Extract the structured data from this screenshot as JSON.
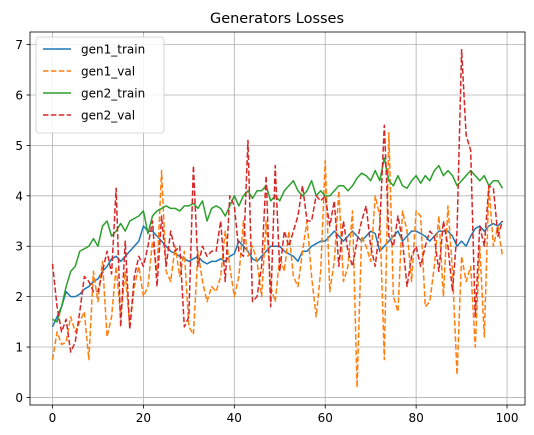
{
  "chart_data": {
    "type": "line",
    "title": "Generators Losses",
    "xlabel": "",
    "ylabel": "",
    "xlim": [
      -4.95,
      103.95
    ],
    "ylim": [
      -0.15,
      7.25
    ],
    "xticks": [
      0,
      20,
      40,
      60,
      80,
      100
    ],
    "yticks": [
      0,
      1,
      2,
      3,
      4,
      5,
      6,
      7
    ],
    "grid": true,
    "legend_position": "top-left",
    "series": [
      {
        "name": "gen1_train",
        "color": "#1f77b4",
        "style": "solid",
        "x": [
          0,
          1,
          2,
          3,
          4,
          5,
          6,
          7,
          8,
          9,
          10,
          11,
          12,
          13,
          14,
          15,
          16,
          17,
          18,
          19,
          20,
          21,
          22,
          23,
          24,
          25,
          26,
          27,
          28,
          29,
          30,
          31,
          32,
          33,
          34,
          35,
          36,
          37,
          38,
          39,
          40,
          41,
          42,
          43,
          44,
          45,
          46,
          47,
          48,
          49,
          50,
          51,
          52,
          53,
          54,
          55,
          56,
          57,
          58,
          59,
          60,
          61,
          62,
          63,
          64,
          65,
          66,
          67,
          68,
          69,
          70,
          71,
          72,
          73,
          74,
          75,
          76,
          77,
          78,
          79,
          80,
          81,
          82,
          83,
          84,
          85,
          86,
          87,
          88,
          89,
          90,
          91,
          92,
          93,
          94,
          95,
          96,
          97,
          98,
          99
        ],
        "values": [
          1.4,
          1.6,
          1.8,
          2.1,
          2.0,
          2.0,
          2.05,
          2.15,
          2.2,
          2.3,
          2.35,
          2.5,
          2.6,
          2.75,
          2.8,
          2.7,
          2.8,
          2.9,
          3.0,
          3.1,
          3.4,
          3.3,
          3.3,
          3.2,
          3.1,
          3.0,
          2.9,
          2.85,
          2.8,
          2.75,
          2.7,
          2.75,
          2.8,
          2.7,
          2.65,
          2.7,
          2.7,
          2.75,
          2.7,
          2.8,
          2.85,
          3.1,
          3.0,
          2.9,
          2.75,
          2.7,
          2.8,
          2.9,
          3.0,
          3.0,
          3.0,
          2.9,
          2.85,
          2.8,
          2.7,
          2.9,
          2.9,
          3.0,
          3.05,
          3.1,
          3.1,
          3.2,
          3.3,
          3.2,
          3.1,
          3.2,
          3.3,
          3.2,
          3.1,
          3.2,
          3.3,
          3.25,
          2.9,
          3.0,
          3.1,
          3.2,
          3.3,
          3.1,
          3.2,
          3.3,
          3.3,
          3.25,
          3.2,
          3.1,
          3.2,
          3.3,
          3.3,
          3.3,
          3.2,
          3.0,
          3.1,
          3.0,
          3.2,
          3.35,
          3.4,
          3.3,
          3.4,
          3.45,
          3.4,
          3.5
        ]
      },
      {
        "name": "gen1_val",
        "color": "#ff7f0e",
        "style": "dashed",
        "x": [
          0,
          1,
          2,
          3,
          4,
          5,
          6,
          7,
          8,
          9,
          10,
          11,
          12,
          13,
          14,
          15,
          16,
          17,
          18,
          19,
          20,
          21,
          22,
          23,
          24,
          25,
          26,
          27,
          28,
          29,
          30,
          31,
          32,
          33,
          34,
          35,
          36,
          37,
          38,
          39,
          40,
          41,
          42,
          43,
          44,
          45,
          46,
          47,
          48,
          49,
          50,
          51,
          52,
          53,
          54,
          55,
          56,
          57,
          58,
          59,
          60,
          61,
          62,
          63,
          64,
          65,
          66,
          67,
          68,
          69,
          70,
          71,
          72,
          73,
          74,
          75,
          76,
          77,
          78,
          79,
          80,
          81,
          82,
          83,
          84,
          85,
          86,
          87,
          88,
          89,
          90,
          91,
          92,
          93,
          94,
          95,
          96,
          97,
          98,
          99
        ],
        "values": [
          0.75,
          1.3,
          1.05,
          1.1,
          1.6,
          1.3,
          1.5,
          1.7,
          0.75,
          2.5,
          1.9,
          2.7,
          1.2,
          1.6,
          2.6,
          1.6,
          2.5,
          1.4,
          2.2,
          2.6,
          2.0,
          2.2,
          3.1,
          2.5,
          4.5,
          2.5,
          2.3,
          3.0,
          2.4,
          2.9,
          1.4,
          1.25,
          2.9,
          2.3,
          1.9,
          2.2,
          2.1,
          2.4,
          3.3,
          2.6,
          2.0,
          2.4,
          3.5,
          2.8,
          3.0,
          2.7,
          2.0,
          3.5,
          2.2,
          1.9,
          2.8,
          2.5,
          3.3,
          2.4,
          2.2,
          2.9,
          3.5,
          2.4,
          1.6,
          2.5,
          4.7,
          2.1,
          2.7,
          4.1,
          2.3,
          2.6,
          3.7,
          0.2,
          3.2,
          3.0,
          2.7,
          4.0,
          3.6,
          0.75,
          5.25,
          2.0,
          1.7,
          3.7,
          3.3,
          2.3,
          3.7,
          3.6,
          1.8,
          1.9,
          2.6,
          3.6,
          2.0,
          3.8,
          2.5,
          0.45,
          2.8,
          2.3,
          2.6,
          1.0,
          3.0,
          1.2,
          4.2,
          3.0,
          3.4,
          2.8
        ]
      },
      {
        "name": "gen2_train",
        "color": "#2ca02c",
        "style": "solid",
        "x": [
          0,
          1,
          2,
          3,
          4,
          5,
          6,
          7,
          8,
          9,
          10,
          11,
          12,
          13,
          14,
          15,
          16,
          17,
          18,
          19,
          20,
          21,
          22,
          23,
          24,
          25,
          26,
          27,
          28,
          29,
          30,
          31,
          32,
          33,
          34,
          35,
          36,
          37,
          38,
          39,
          40,
          41,
          42,
          43,
          44,
          45,
          46,
          47,
          48,
          49,
          50,
          51,
          52,
          53,
          54,
          55,
          56,
          57,
          58,
          59,
          60,
          61,
          62,
          63,
          64,
          65,
          66,
          67,
          68,
          69,
          70,
          71,
          72,
          73,
          74,
          75,
          76,
          77,
          78,
          79,
          80,
          81,
          82,
          83,
          84,
          85,
          86,
          87,
          88,
          89,
          90,
          91,
          92,
          93,
          94,
          95,
          96,
          97,
          98,
          99
        ],
        "values": [
          1.55,
          1.5,
          1.8,
          2.2,
          2.5,
          2.6,
          2.9,
          2.95,
          3.0,
          3.15,
          3.0,
          3.4,
          3.5,
          3.2,
          3.3,
          3.45,
          3.3,
          3.5,
          3.55,
          3.6,
          3.7,
          3.25,
          3.6,
          3.7,
          3.75,
          3.8,
          3.75,
          3.75,
          3.7,
          3.8,
          3.8,
          3.85,
          3.75,
          3.9,
          3.5,
          3.75,
          3.8,
          3.75,
          3.6,
          3.8,
          4.0,
          3.8,
          4.0,
          4.1,
          3.95,
          4.1,
          4.1,
          4.2,
          3.9,
          4.0,
          3.9,
          4.1,
          4.2,
          4.3,
          4.1,
          4.0,
          4.1,
          4.3,
          4.0,
          4.1,
          4.0,
          4.0,
          4.1,
          4.2,
          4.2,
          4.1,
          4.2,
          4.35,
          4.45,
          4.4,
          4.3,
          4.5,
          4.3,
          4.75,
          4.3,
          4.2,
          4.4,
          4.2,
          4.15,
          4.3,
          4.4,
          4.25,
          4.4,
          4.3,
          4.5,
          4.6,
          4.4,
          4.5,
          4.4,
          4.2,
          4.3,
          4.4,
          4.5,
          4.4,
          4.3,
          4.4,
          4.2,
          4.3,
          4.3,
          4.15
        ]
      },
      {
        "name": "gen2_val",
        "color": "#d62728",
        "style": "dashed",
        "x": [
          0,
          1,
          2,
          3,
          4,
          5,
          6,
          7,
          8,
          9,
          10,
          11,
          12,
          13,
          14,
          15,
          16,
          17,
          18,
          19,
          20,
          21,
          22,
          23,
          24,
          25,
          26,
          27,
          28,
          29,
          30,
          31,
          32,
          33,
          34,
          35,
          36,
          37,
          38,
          39,
          40,
          41,
          42,
          43,
          44,
          45,
          46,
          47,
          48,
          49,
          50,
          51,
          52,
          53,
          54,
          55,
          56,
          57,
          58,
          59,
          60,
          61,
          62,
          63,
          64,
          65,
          66,
          67,
          68,
          69,
          70,
          71,
          72,
          73,
          74,
          75,
          76,
          77,
          78,
          79,
          80,
          81,
          82,
          83,
          84,
          85,
          86,
          87,
          88,
          89,
          90,
          91,
          92,
          93,
          94,
          95,
          96,
          97,
          98,
          99
        ],
        "values": [
          2.65,
          1.8,
          1.3,
          1.55,
          0.9,
          1.1,
          1.7,
          2.4,
          2.3,
          2.1,
          2.1,
          2.5,
          2.9,
          2.45,
          4.15,
          1.4,
          3.1,
          1.35,
          2.4,
          2.8,
          2.6,
          3.0,
          3.5,
          2.2,
          3.6,
          2.6,
          3.3,
          2.9,
          3.0,
          1.4,
          1.6,
          4.6,
          2.6,
          3.0,
          2.8,
          2.9,
          2.9,
          3.5,
          2.3,
          4.0,
          3.8,
          2.9,
          2.8,
          5.1,
          1.9,
          2.0,
          2.6,
          4.4,
          1.8,
          4.6,
          2.5,
          3.3,
          3.0,
          3.3,
          3.6,
          4.2,
          3.5,
          3.5,
          4.0,
          3.9,
          4.0,
          3.4,
          3.9,
          2.6,
          3.5,
          2.9,
          2.6,
          3.1,
          3.5,
          3.8,
          3.0,
          2.6,
          3.4,
          5.4,
          3.2,
          3.0,
          3.6,
          3.1,
          2.2,
          2.8,
          3.0,
          2.6,
          3.0,
          3.3,
          3.2,
          2.5,
          3.5,
          3.0,
          2.1,
          3.3,
          6.9,
          5.2,
          4.9,
          1.6,
          3.4,
          3.0,
          4.2,
          4.15,
          3.2,
          3.5
        ]
      }
    ]
  }
}
